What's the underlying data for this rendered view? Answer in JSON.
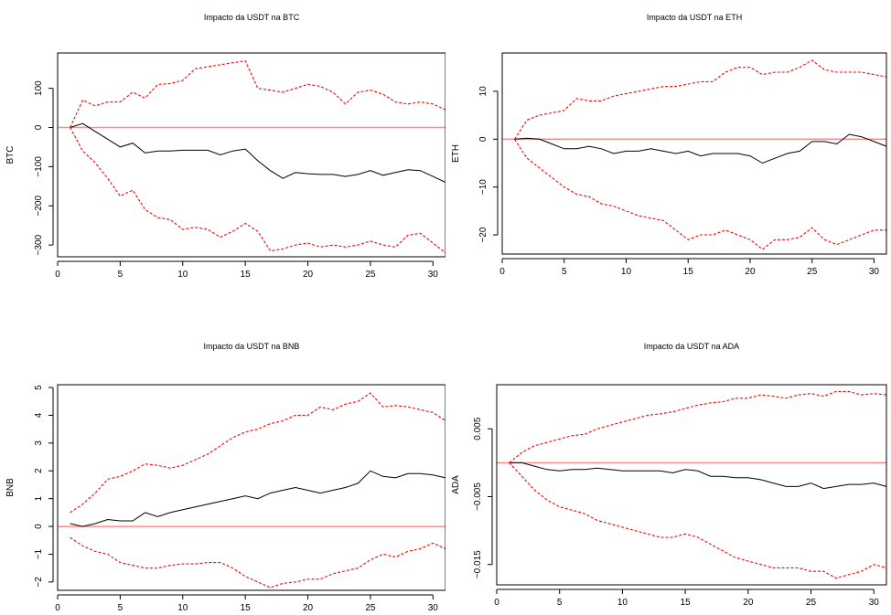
{
  "chart_data": [
    {
      "type": "line",
      "title": "Impacto da USDT na BTC",
      "xlabel": "",
      "ylabel": "BTC",
      "xlim": [
        0,
        31
      ],
      "ylim": [
        -330,
        190
      ],
      "xticks": [
        0,
        5,
        10,
        15,
        20,
        25,
        30
      ],
      "yticks": [
        -300,
        -200,
        -100,
        0,
        100
      ],
      "grid": false,
      "legend": "none",
      "zero_line_color": "#ff8c8c",
      "series": [
        {
          "role": "response",
          "color": "#000000",
          "x": [
            1,
            2,
            3,
            4,
            5,
            6,
            7,
            8,
            9,
            10,
            11,
            12,
            13,
            14,
            15,
            16,
            17,
            18,
            19,
            20,
            21,
            22,
            23,
            24,
            25,
            26,
            27,
            28,
            29,
            30,
            31
          ],
          "y": [
            0,
            10,
            -10,
            -30,
            -50,
            -40,
            -65,
            -60,
            -60,
            -58,
            -58,
            -58,
            -70,
            -60,
            -55,
            -85,
            -110,
            -130,
            -115,
            -118,
            -120,
            -120,
            -125,
            -120,
            -110,
            -122,
            -115,
            -108,
            -110,
            -125,
            -140
          ]
        },
        {
          "role": "upper",
          "color": "#ff0000",
          "x": [
            1,
            2,
            3,
            4,
            5,
            6,
            7,
            8,
            9,
            10,
            11,
            12,
            13,
            14,
            15,
            16,
            17,
            18,
            19,
            20,
            21,
            22,
            23,
            24,
            25,
            26,
            27,
            28,
            29,
            30,
            31
          ],
          "y": [
            0,
            70,
            55,
            65,
            65,
            90,
            75,
            110,
            112,
            120,
            150,
            155,
            160,
            165,
            170,
            100,
            95,
            90,
            100,
            110,
            105,
            90,
            60,
            90,
            95,
            85,
            65,
            60,
            65,
            60,
            45
          ]
        },
        {
          "role": "lower",
          "color": "#ff0000",
          "x": [
            1,
            2,
            3,
            4,
            5,
            6,
            7,
            8,
            9,
            10,
            11,
            12,
            13,
            14,
            15,
            16,
            17,
            18,
            19,
            20,
            21,
            22,
            23,
            24,
            25,
            26,
            27,
            28,
            29,
            30,
            31
          ],
          "y": [
            0,
            -60,
            -90,
            -130,
            -175,
            -160,
            -210,
            -230,
            -235,
            -260,
            -255,
            -260,
            -280,
            -265,
            -245,
            -265,
            -315,
            -310,
            -300,
            -295,
            -305,
            -300,
            -305,
            -300,
            -290,
            -300,
            -305,
            -275,
            -270,
            -295,
            -320
          ]
        }
      ]
    },
    {
      "type": "line",
      "title": "Impacto da USDT na ETH",
      "xlabel": "",
      "ylabel": "ETH",
      "xlim": [
        0,
        31
      ],
      "ylim": [
        -24,
        18
      ],
      "xticks": [
        0,
        5,
        10,
        15,
        20,
        25,
        30
      ],
      "yticks": [
        -20,
        -10,
        0,
        10
      ],
      "grid": false,
      "legend": "none",
      "zero_line_color": "#ff8c8c",
      "series": [
        {
          "role": "response",
          "color": "#000000",
          "x": [
            1,
            2,
            3,
            4,
            5,
            6,
            7,
            8,
            9,
            10,
            11,
            12,
            13,
            14,
            15,
            16,
            17,
            18,
            19,
            20,
            21,
            22,
            23,
            24,
            25,
            26,
            27,
            28,
            29,
            30,
            31
          ],
          "y": [
            0,
            0.2,
            0,
            -1,
            -2,
            -2,
            -1.5,
            -2,
            -3,
            -2.5,
            -2.5,
            -2,
            -2.5,
            -3,
            -2.5,
            -3.5,
            -3,
            -3,
            -3,
            -3.5,
            -5,
            -4,
            -3,
            -2.5,
            -0.5,
            -0.5,
            -1,
            1,
            0.5,
            -0.5,
            -1.5
          ]
        },
        {
          "role": "upper",
          "color": "#ff0000",
          "x": [
            1,
            2,
            3,
            4,
            5,
            6,
            7,
            8,
            9,
            10,
            11,
            12,
            13,
            14,
            15,
            16,
            17,
            18,
            19,
            20,
            21,
            22,
            23,
            24,
            25,
            26,
            27,
            28,
            29,
            30,
            31
          ],
          "y": [
            0,
            4,
            5,
            5.5,
            6,
            8.5,
            8,
            8,
            9,
            9.5,
            10,
            10.5,
            11,
            11,
            11.5,
            12,
            12,
            14,
            15,
            15,
            13.5,
            14,
            14,
            15,
            16.5,
            14.5,
            14,
            14,
            14,
            13.5,
            13
          ]
        },
        {
          "role": "lower",
          "color": "#ff0000",
          "x": [
            1,
            2,
            3,
            4,
            5,
            6,
            7,
            8,
            9,
            10,
            11,
            12,
            13,
            14,
            15,
            16,
            17,
            18,
            19,
            20,
            21,
            22,
            23,
            24,
            25,
            26,
            27,
            28,
            29,
            30,
            31
          ],
          "y": [
            0,
            -4,
            -6,
            -8,
            -10,
            -11.5,
            -12,
            -13.5,
            -14,
            -15,
            -16,
            -16.5,
            -17,
            -19,
            -21,
            -20,
            -20,
            -19,
            -20,
            -21,
            -23,
            -21,
            -21,
            -20.5,
            -18.5,
            -21,
            -22,
            -21,
            -20,
            -19,
            -19
          ]
        }
      ]
    },
    {
      "type": "line",
      "title": "Impacto da USDT na BNB",
      "xlabel": "",
      "ylabel": "BNB",
      "xlim": [
        0,
        31
      ],
      "ylim": [
        -2.3,
        5.1
      ],
      "xticks": [
        0,
        5,
        10,
        15,
        20,
        25,
        30
      ],
      "yticks": [
        -2,
        -1,
        0,
        1,
        2,
        3,
        4,
        5
      ],
      "grid": false,
      "legend": "none",
      "zero_line_color": "#ff8c8c",
      "series": [
        {
          "role": "response",
          "color": "#000000",
          "x": [
            1,
            2,
            3,
            4,
            5,
            6,
            7,
            8,
            9,
            10,
            11,
            12,
            13,
            14,
            15,
            16,
            17,
            18,
            19,
            20,
            21,
            22,
            23,
            24,
            25,
            26,
            27,
            28,
            29,
            30,
            31
          ],
          "y": [
            0.1,
            0,
            0.1,
            0.25,
            0.2,
            0.2,
            0.5,
            0.35,
            0.5,
            0.6,
            0.7,
            0.8,
            0.9,
            1.0,
            1.1,
            1.0,
            1.2,
            1.3,
            1.4,
            1.3,
            1.2,
            1.3,
            1.4,
            1.55,
            2.0,
            1.8,
            1.75,
            1.9,
            1.9,
            1.85,
            1.75
          ]
        },
        {
          "role": "upper",
          "color": "#ff0000",
          "x": [
            1,
            2,
            3,
            4,
            5,
            6,
            7,
            8,
            9,
            10,
            11,
            12,
            13,
            14,
            15,
            16,
            17,
            18,
            19,
            20,
            21,
            22,
            23,
            24,
            25,
            26,
            27,
            28,
            29,
            30,
            31
          ],
          "y": [
            0.5,
            0.8,
            1.2,
            1.7,
            1.8,
            2.0,
            2.25,
            2.2,
            2.1,
            2.2,
            2.4,
            2.6,
            2.9,
            3.2,
            3.4,
            3.5,
            3.7,
            3.8,
            4.0,
            4.0,
            4.3,
            4.2,
            4.4,
            4.5,
            4.8,
            4.3,
            4.35,
            4.3,
            4.2,
            4.1,
            3.8
          ]
        },
        {
          "role": "lower",
          "color": "#ff0000",
          "x": [
            1,
            2,
            3,
            4,
            5,
            6,
            7,
            8,
            9,
            10,
            11,
            12,
            13,
            14,
            15,
            16,
            17,
            18,
            19,
            20,
            21,
            22,
            23,
            24,
            25,
            26,
            27,
            28,
            29,
            30,
            31
          ],
          "y": [
            -0.4,
            -0.7,
            -0.9,
            -1.0,
            -1.3,
            -1.4,
            -1.5,
            -1.5,
            -1.4,
            -1.35,
            -1.35,
            -1.3,
            -1.3,
            -1.5,
            -1.8,
            -2.0,
            -2.2,
            -2.05,
            -2.0,
            -1.9,
            -1.9,
            -1.7,
            -1.6,
            -1.5,
            -1.2,
            -1.0,
            -1.1,
            -0.9,
            -0.8,
            -0.6,
            -0.8
          ]
        }
      ]
    },
    {
      "type": "line",
      "title": "Impacto da USDT na ADA",
      "xlabel": "",
      "ylabel": "ADA",
      "xlim": [
        0,
        31
      ],
      "ylim": [
        -0.018,
        0.0115
      ],
      "xticks": [
        0,
        5,
        10,
        15,
        20,
        25,
        30
      ],
      "yticks": [
        -0.015,
        -0.005,
        0.005
      ],
      "grid": false,
      "legend": "none",
      "zero_line_color": "#ff8c8c",
      "series": [
        {
          "role": "response",
          "color": "#000000",
          "x": [
            1,
            2,
            3,
            4,
            5,
            6,
            7,
            8,
            9,
            10,
            11,
            12,
            13,
            14,
            15,
            16,
            17,
            18,
            19,
            20,
            21,
            22,
            23,
            24,
            25,
            26,
            27,
            28,
            29,
            30,
            31
          ],
          "y": [
            0,
            0,
            -0.0005,
            -0.001,
            -0.0012,
            -0.001,
            -0.001,
            -0.0008,
            -0.001,
            -0.0012,
            -0.0012,
            -0.0012,
            -0.0012,
            -0.0015,
            -0.001,
            -0.0012,
            -0.002,
            -0.002,
            -0.0022,
            -0.0022,
            -0.0025,
            -0.003,
            -0.0035,
            -0.0035,
            -0.003,
            -0.0038,
            -0.0035,
            -0.0032,
            -0.0032,
            -0.003,
            -0.0035
          ]
        },
        {
          "role": "upper",
          "color": "#ff0000",
          "x": [
            1,
            2,
            3,
            4,
            5,
            6,
            7,
            8,
            9,
            10,
            11,
            12,
            13,
            14,
            15,
            16,
            17,
            18,
            19,
            20,
            21,
            22,
            23,
            24,
            25,
            26,
            27,
            28,
            29,
            30,
            31
          ],
          "y": [
            0,
            0.0015,
            0.0025,
            0.003,
            0.0035,
            0.004,
            0.0042,
            0.005,
            0.0055,
            0.006,
            0.0065,
            0.007,
            0.0072,
            0.0075,
            0.008,
            0.0085,
            0.0088,
            0.009,
            0.0095,
            0.0095,
            0.01,
            0.0098,
            0.0095,
            0.01,
            0.0102,
            0.0098,
            0.0105,
            0.0105,
            0.01,
            0.0102,
            0.01
          ]
        },
        {
          "role": "lower",
          "color": "#ff0000",
          "x": [
            1,
            2,
            3,
            4,
            5,
            6,
            7,
            8,
            9,
            10,
            11,
            12,
            13,
            14,
            15,
            16,
            17,
            18,
            19,
            20,
            21,
            22,
            23,
            24,
            25,
            26,
            27,
            28,
            29,
            30,
            31
          ],
          "y": [
            0,
            -0.002,
            -0.004,
            -0.0055,
            -0.0065,
            -0.007,
            -0.0075,
            -0.0085,
            -0.009,
            -0.0095,
            -0.01,
            -0.0105,
            -0.011,
            -0.011,
            -0.0105,
            -0.011,
            -0.012,
            -0.013,
            -0.014,
            -0.0145,
            -0.015,
            -0.0155,
            -0.0155,
            -0.0155,
            -0.016,
            -0.016,
            -0.017,
            -0.0165,
            -0.016,
            -0.015,
            -0.0155
          ]
        }
      ]
    }
  ]
}
